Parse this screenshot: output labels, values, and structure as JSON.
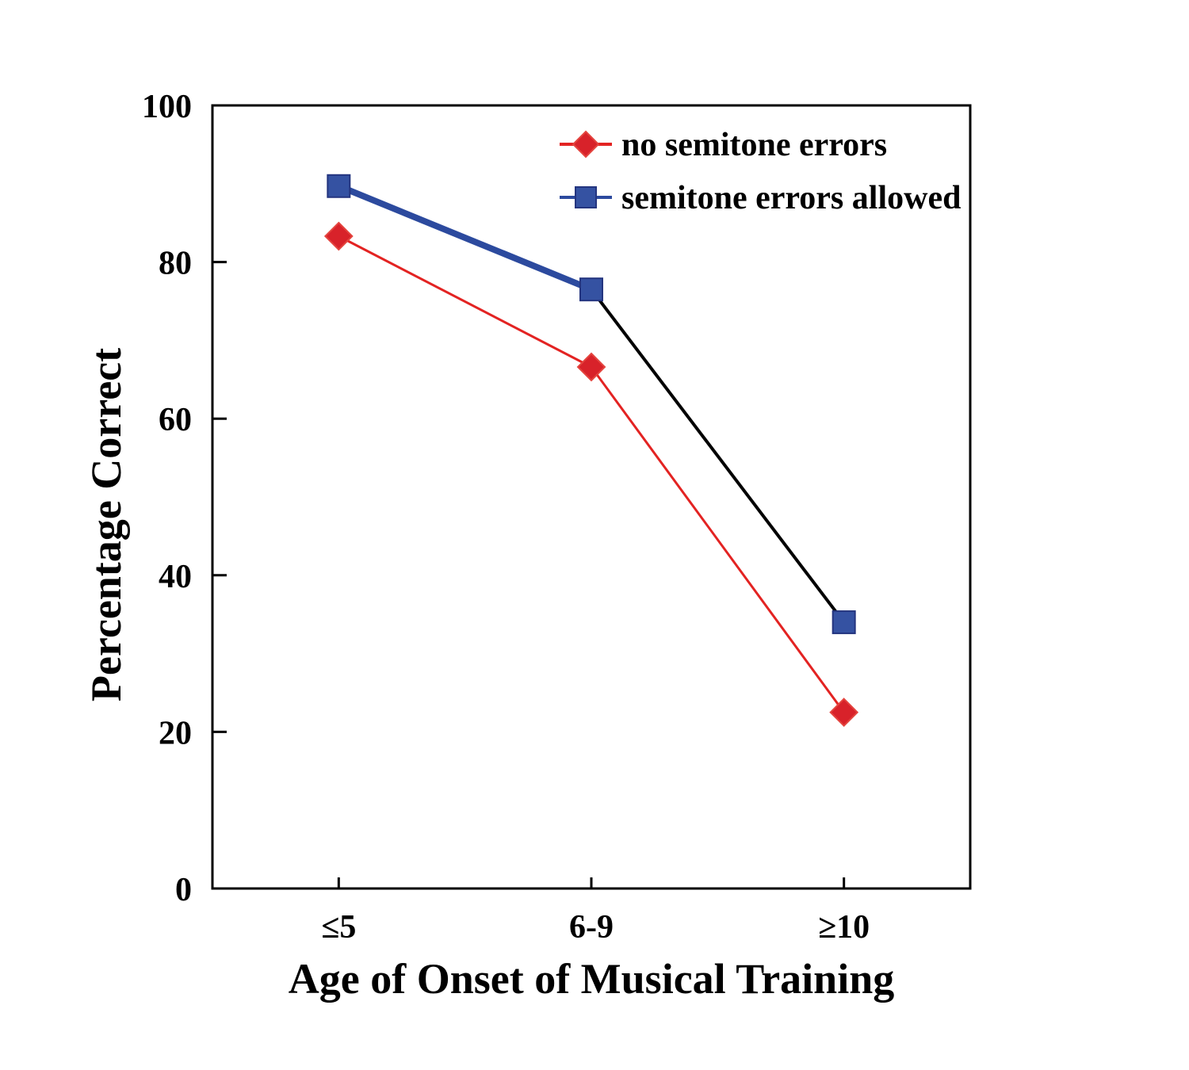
{
  "chart_data": {
    "type": "line",
    "title": "",
    "xlabel": "Age of Onset of Musical Training",
    "ylabel": "Percentage Correct",
    "categories": [
      "≤5",
      "6-9",
      "≥10"
    ],
    "yticks": [
      0,
      20,
      40,
      60,
      80,
      100
    ],
    "ylim": [
      0,
      100
    ],
    "grid": false,
    "legend_position": "top-right-inside",
    "axis_color": "#000000",
    "background_color": "#ffffff",
    "series": [
      {
        "name": "no semitone errors",
        "marker": "diamond",
        "marker_fill": "#d8222a",
        "marker_stroke": "#e4443e",
        "line_segments": [
          {
            "color": "#e32322",
            "width": 3
          },
          {
            "color": "#e32322",
            "width": 3
          }
        ],
        "legend_line_color": "#e32322",
        "values": [
          83.3,
          66.6,
          22.5
        ]
      },
      {
        "name": "semitone errors allowed",
        "marker": "square",
        "marker_fill": "#3552a2",
        "marker_stroke": "#24357f",
        "line_segments": [
          {
            "color": "#2c4a9e",
            "width": 8
          },
          {
            "color": "#000000",
            "width": 4
          }
        ],
        "legend_line_color": "#2c4a9e",
        "values": [
          89.7,
          76.5,
          34.0
        ]
      }
    ]
  }
}
